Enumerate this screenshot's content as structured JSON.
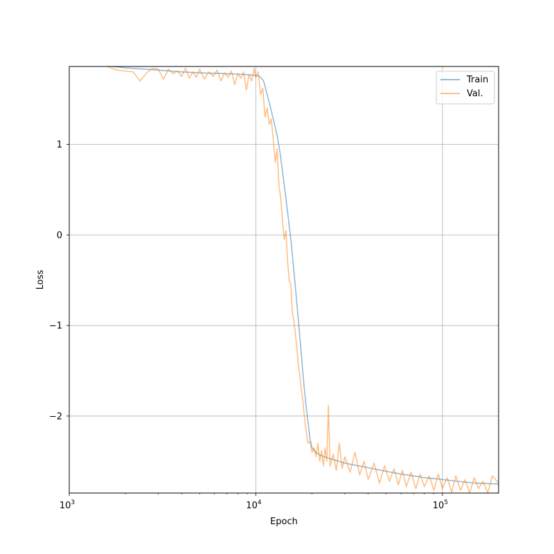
{
  "chart_data": {
    "type": "line",
    "title": "",
    "xlabel": "Epoch",
    "ylabel": "Loss",
    "x_scale": "log",
    "xlim": [
      1000,
      200000
    ],
    "ylim": [
      -2.85,
      1.86
    ],
    "grid": true,
    "legend_position": "top-right",
    "x_ticks": [
      {
        "value": 1000,
        "base": "10",
        "exp": "3"
      },
      {
        "value": 10000,
        "base": "10",
        "exp": "4"
      },
      {
        "value": 100000,
        "base": "10",
        "exp": "5"
      }
    ],
    "y_ticks": [
      {
        "value": 1,
        "label": "1"
      },
      {
        "value": 0,
        "label": "0"
      },
      {
        "value": -1,
        "label": "−1"
      },
      {
        "value": -2,
        "label": "−2"
      }
    ],
    "series": [
      {
        "name": "Train",
        "color": "#1f77b4",
        "opacity": 0.5,
        "points": [
          [
            1700,
            1.86
          ],
          [
            2000,
            1.845
          ],
          [
            3000,
            1.82
          ],
          [
            4000,
            1.8
          ],
          [
            5000,
            1.79
          ],
          [
            6000,
            1.785
          ],
          [
            7000,
            1.78
          ],
          [
            8000,
            1.775
          ],
          [
            9000,
            1.77
          ],
          [
            10000,
            1.76
          ],
          [
            10500,
            1.75
          ],
          [
            11000,
            1.7
          ],
          [
            11500,
            1.55
          ],
          [
            12000,
            1.4
          ],
          [
            12500,
            1.25
          ],
          [
            13000,
            1.1
          ],
          [
            13500,
            0.9
          ],
          [
            14000,
            0.65
          ],
          [
            14500,
            0.4
          ],
          [
            15000,
            0.15
          ],
          [
            15500,
            -0.1
          ],
          [
            16000,
            -0.4
          ],
          [
            16500,
            -0.7
          ],
          [
            17000,
            -1.0
          ],
          [
            17500,
            -1.3
          ],
          [
            18000,
            -1.6
          ],
          [
            18500,
            -1.85
          ],
          [
            19000,
            -2.05
          ],
          [
            19500,
            -2.25
          ],
          [
            20000,
            -2.35
          ],
          [
            21000,
            -2.4
          ],
          [
            22000,
            -2.43
          ],
          [
            25000,
            -2.47
          ],
          [
            30000,
            -2.52
          ],
          [
            40000,
            -2.57
          ],
          [
            50000,
            -2.61
          ],
          [
            60000,
            -2.64
          ],
          [
            70000,
            -2.66
          ],
          [
            80000,
            -2.68
          ],
          [
            100000,
            -2.7
          ],
          [
            120000,
            -2.72
          ],
          [
            150000,
            -2.74
          ],
          [
            200000,
            -2.75
          ]
        ]
      },
      {
        "name": "Val.",
        "color": "#ff7f0e",
        "opacity": 0.5,
        "points": [
          [
            1600,
            1.86
          ],
          [
            1800,
            1.82
          ],
          [
            2000,
            1.81
          ],
          [
            2200,
            1.8
          ],
          [
            2400,
            1.7
          ],
          [
            2600,
            1.79
          ],
          [
            2800,
            1.84
          ],
          [
            3000,
            1.83
          ],
          [
            3200,
            1.72
          ],
          [
            3400,
            1.83
          ],
          [
            3600,
            1.78
          ],
          [
            3800,
            1.81
          ],
          [
            4000,
            1.75
          ],
          [
            4200,
            1.84
          ],
          [
            4400,
            1.73
          ],
          [
            4600,
            1.8
          ],
          [
            4800,
            1.74
          ],
          [
            5000,
            1.83
          ],
          [
            5300,
            1.72
          ],
          [
            5600,
            1.8
          ],
          [
            5900,
            1.75
          ],
          [
            6200,
            1.82
          ],
          [
            6500,
            1.7
          ],
          [
            6800,
            1.79
          ],
          [
            7100,
            1.74
          ],
          [
            7400,
            1.81
          ],
          [
            7700,
            1.66
          ],
          [
            8000,
            1.78
          ],
          [
            8300,
            1.73
          ],
          [
            8600,
            1.8
          ],
          [
            8900,
            1.6
          ],
          [
            9200,
            1.77
          ],
          [
            9500,
            1.7
          ],
          [
            9800,
            1.84
          ],
          [
            10000,
            1.74
          ],
          [
            10300,
            1.8
          ],
          [
            10600,
            1.55
          ],
          [
            10900,
            1.62
          ],
          [
            11200,
            1.3
          ],
          [
            11500,
            1.4
          ],
          [
            11800,
            1.22
          ],
          [
            12100,
            1.28
          ],
          [
            12400,
            1.05
          ],
          [
            12700,
            0.8
          ],
          [
            13000,
            0.95
          ],
          [
            13300,
            0.55
          ],
          [
            13600,
            0.4
          ],
          [
            13900,
            0.15
          ],
          [
            14200,
            -0.05
          ],
          [
            14500,
            0.05
          ],
          [
            14800,
            -0.3
          ],
          [
            15100,
            -0.5
          ],
          [
            15400,
            -0.55
          ],
          [
            15700,
            -0.85
          ],
          [
            16000,
            -0.95
          ],
          [
            16300,
            -1.1
          ],
          [
            16600,
            -1.25
          ],
          [
            16900,
            -1.45
          ],
          [
            17200,
            -1.55
          ],
          [
            17500,
            -1.7
          ],
          [
            17800,
            -1.8
          ],
          [
            18100,
            -1.95
          ],
          [
            18400,
            -2.1
          ],
          [
            18700,
            -2.2
          ],
          [
            19000,
            -2.3
          ],
          [
            19500,
            -2.28
          ],
          [
            20000,
            -2.4
          ],
          [
            20500,
            -2.35
          ],
          [
            21000,
            -2.45
          ],
          [
            21500,
            -2.3
          ],
          [
            22000,
            -2.5
          ],
          [
            22500,
            -2.38
          ],
          [
            23000,
            -2.55
          ],
          [
            23500,
            -2.35
          ],
          [
            24000,
            -2.5
          ],
          [
            24500,
            -1.88
          ],
          [
            25000,
            -2.55
          ],
          [
            26000,
            -2.42
          ],
          [
            27000,
            -2.6
          ],
          [
            28000,
            -2.3
          ],
          [
            29000,
            -2.58
          ],
          [
            30000,
            -2.45
          ],
          [
            32000,
            -2.62
          ],
          [
            34000,
            -2.4
          ],
          [
            36000,
            -2.65
          ],
          [
            38000,
            -2.5
          ],
          [
            40000,
            -2.7
          ],
          [
            43000,
            -2.52
          ],
          [
            46000,
            -2.74
          ],
          [
            49000,
            -2.55
          ],
          [
            52000,
            -2.72
          ],
          [
            55000,
            -2.58
          ],
          [
            58000,
            -2.76
          ],
          [
            61000,
            -2.6
          ],
          [
            64000,
            -2.78
          ],
          [
            68000,
            -2.62
          ],
          [
            72000,
            -2.8
          ],
          [
            76000,
            -2.64
          ],
          [
            80000,
            -2.78
          ],
          [
            85000,
            -2.66
          ],
          [
            90000,
            -2.82
          ],
          [
            95000,
            -2.64
          ],
          [
            100000,
            -2.8
          ],
          [
            106000,
            -2.68
          ],
          [
            112000,
            -2.84
          ],
          [
            118000,
            -2.66
          ],
          [
            125000,
            -2.82
          ],
          [
            132000,
            -2.7
          ],
          [
            140000,
            -2.85
          ],
          [
            148000,
            -2.68
          ],
          [
            156000,
            -2.8
          ],
          [
            165000,
            -2.72
          ],
          [
            175000,
            -2.85
          ],
          [
            185000,
            -2.66
          ],
          [
            200000,
            -2.74
          ]
        ]
      }
    ]
  }
}
